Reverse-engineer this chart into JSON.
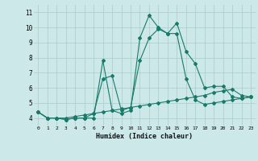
{
  "xlabel": "Humidex (Indice chaleur)",
  "background_color": "#cce8e8",
  "grid_color": "#aacccc",
  "line_color": "#1a7a6a",
  "xlim": [
    -0.5,
    23.5
  ],
  "ylim": [
    3.5,
    11.5
  ],
  "yticks": [
    4,
    5,
    6,
    7,
    8,
    9,
    10,
    11
  ],
  "xticks": [
    0,
    1,
    2,
    3,
    4,
    5,
    6,
    7,
    8,
    9,
    10,
    11,
    12,
    13,
    14,
    15,
    16,
    17,
    18,
    19,
    20,
    21,
    22,
    23
  ],
  "xtick_labels": [
    "0",
    "1",
    "2",
    "3",
    "4",
    "5",
    "6",
    "7",
    "8",
    "9",
    "10",
    "11",
    "12",
    "13",
    "14",
    "15",
    "16",
    "17",
    "18",
    "19",
    "20",
    "21",
    "22",
    "23"
  ],
  "series1_x": [
    0,
    1,
    2,
    3,
    4,
    5,
    6,
    7,
    8,
    9,
    10,
    11,
    12,
    13,
    14,
    15,
    16,
    17,
    18,
    19,
    20,
    21,
    22,
    23
  ],
  "series1_y": [
    4.4,
    4.0,
    4.0,
    3.9,
    4.0,
    4.0,
    4.0,
    7.8,
    4.5,
    4.3,
    4.5,
    9.3,
    10.8,
    10.0,
    9.6,
    10.3,
    8.4,
    7.6,
    6.0,
    6.1,
    6.1,
    5.4,
    5.3,
    5.4
  ],
  "series2_x": [
    0,
    1,
    2,
    3,
    4,
    5,
    6,
    7,
    8,
    9,
    10,
    11,
    12,
    13,
    14,
    15,
    16,
    17,
    18,
    19,
    20,
    21,
    22,
    23
  ],
  "series2_y": [
    4.4,
    4.0,
    4.0,
    3.9,
    4.0,
    4.0,
    4.3,
    6.6,
    6.8,
    4.5,
    4.7,
    7.8,
    9.3,
    9.9,
    9.6,
    9.6,
    6.6,
    5.2,
    4.9,
    5.0,
    5.1,
    5.2,
    5.3,
    5.4
  ],
  "series3_x": [
    0,
    1,
    2,
    3,
    4,
    5,
    6,
    7,
    8,
    9,
    10,
    11,
    12,
    13,
    14,
    15,
    16,
    17,
    18,
    19,
    20,
    21,
    22,
    23
  ],
  "series3_y": [
    4.4,
    4.0,
    4.0,
    4.0,
    4.1,
    4.2,
    4.3,
    4.4,
    4.5,
    4.6,
    4.7,
    4.8,
    4.9,
    5.0,
    5.1,
    5.2,
    5.3,
    5.4,
    5.5,
    5.7,
    5.8,
    5.9,
    5.5,
    5.4
  ]
}
